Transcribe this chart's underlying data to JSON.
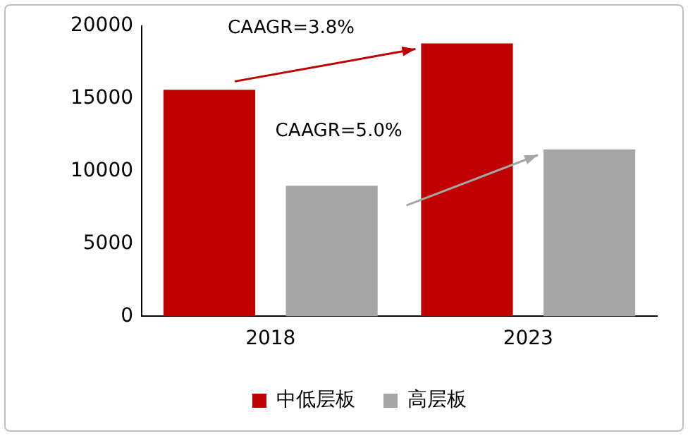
{
  "chart_data": {
    "type": "bar",
    "categories": [
      "2018",
      "2023"
    ],
    "series": [
      {
        "name": "中低层板",
        "color": "#c00000",
        "values": [
          15600,
          18800
        ]
      },
      {
        "name": "高层板",
        "color": "#a6a6a6",
        "values": [
          9000,
          11500
        ]
      }
    ],
    "ylim": [
      0,
      20000
    ],
    "yticks": [
      0,
      5000,
      10000,
      15000,
      20000
    ],
    "grid": false,
    "legend": "bottom",
    "annotations": [
      "CAAGR=3.8%",
      "CAAGR=5.0%"
    ]
  }
}
